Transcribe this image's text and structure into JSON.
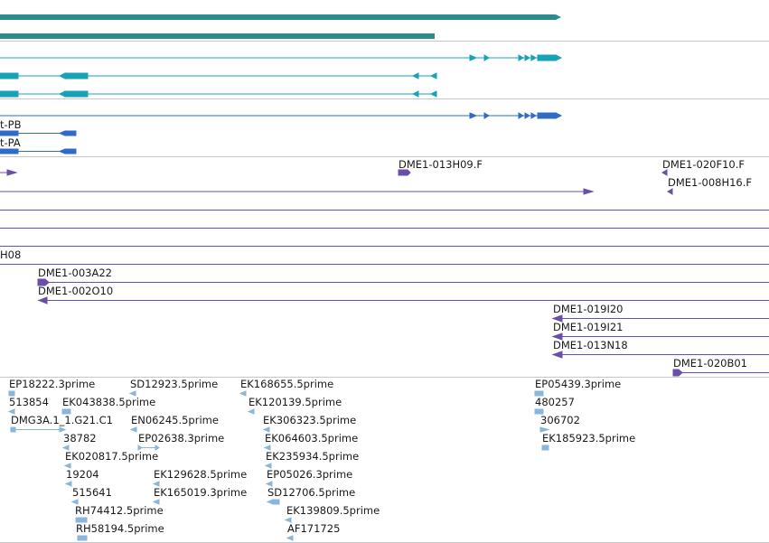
{
  "colors": {
    "gene": "#2a8c8c",
    "mrna": "#17a2b8",
    "mrna_alt": "#2e6cc8",
    "clone": "#6a4fa8",
    "est": "#8ab6dc",
    "separator": "#c8c8c8"
  },
  "tracks": {
    "mrna_labels": [
      "t-PB",
      "t-PA"
    ],
    "clone_labels": [
      "DME1-013H09.F",
      "DME1-020F10.F",
      "DME1-008H16.F",
      "H08",
      "DME1-003A22",
      "DME1-002O10",
      "DME1-019I20",
      "DME1-019I21",
      "DME1-013N18",
      "DME1-020B01"
    ],
    "est_labels": [
      "EP18222.3prime",
      "513854",
      "DMG3A.1_1.G21.C1",
      "38782",
      "EK020817.5prime",
      "19204",
      "515641",
      "RH74412.5prime",
      "RH58194.5prime",
      "SD12923.5prime",
      "EK043838.5prime",
      "EN06245.5prime",
      "EP02638.3prime",
      "EK129628.5prime",
      "EK165019.3prime",
      "EK168655.5prime",
      "EK120139.5prime",
      "EK306323.5prime",
      "EK064603.5prime",
      "EK235934.5prime",
      "EP05026.3prime",
      "SD12706.5prime",
      "EK139809.5prime",
      "AF171725",
      "EP05439.3prime",
      "480257",
      "306702",
      "EK185923.5prime"
    ]
  }
}
